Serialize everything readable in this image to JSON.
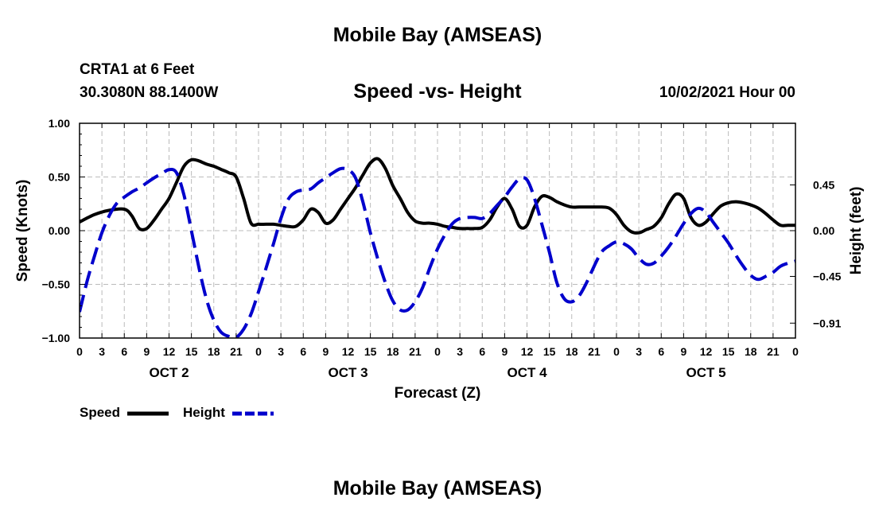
{
  "header": {
    "title": "Mobile Bay (AMSEAS)",
    "footer_title": "Mobile Bay (AMSEAS)",
    "station": "CRTA1 at 6 Feet",
    "coords": "30.3080N  88.1400W",
    "chart_title": "Speed -vs- Height",
    "datetime": "10/02/2021 Hour 00"
  },
  "legend": {
    "speed": "Speed",
    "height": "Height"
  },
  "colors": {
    "speed": "#000000",
    "height": "#0000cc",
    "grid": "#bbbbbb"
  },
  "chart_data": {
    "type": "line",
    "title": "Speed -vs- Height",
    "xlabel": "Forecast (Z)",
    "ylabel_left": "Speed (Knots)",
    "ylabel_right": "Height (feet)",
    "xlim": [
      0,
      96
    ],
    "ylim_left": [
      -1.0,
      1.0
    ],
    "ylim_right": [
      -1.0566,
      1.0566
    ],
    "yticks_left": [
      1.0,
      0.5,
      0.0,
      -0.5,
      -1.0
    ],
    "yticks_left_labels": [
      "1.00",
      "0.50",
      "0.00",
      "−0.50",
      "−1.00"
    ],
    "yticks_right": [
      0.45,
      0.0,
      -0.45,
      -0.91
    ],
    "yticks_right_labels": [
      "0.45",
      "0.00",
      "−0.45",
      "−0.91"
    ],
    "xticks": [
      0,
      3,
      6,
      9,
      12,
      15,
      18,
      21,
      24,
      27,
      30,
      33,
      36,
      39,
      42,
      45,
      48,
      51,
      54,
      57,
      60,
      63,
      66,
      69,
      72,
      75,
      78,
      81,
      84,
      87,
      90,
      93,
      96
    ],
    "xtick_labels": [
      "0",
      "3",
      "6",
      "9",
      "12",
      "15",
      "18",
      "21",
      "0",
      "3",
      "6",
      "9",
      "12",
      "15",
      "18",
      "21",
      "0",
      "3",
      "6",
      "9",
      "12",
      "15",
      "18",
      "21",
      "0",
      "3",
      "6",
      "9",
      "12",
      "15",
      "18",
      "21",
      "0"
    ],
    "day_labels": [
      {
        "x": 12,
        "label": "OCT 2"
      },
      {
        "x": 36,
        "label": "OCT 3"
      },
      {
        "x": 60,
        "label": "OCT 4"
      },
      {
        "x": 84,
        "label": "OCT 5"
      }
    ],
    "grid": true,
    "legend_position": "bottom-left",
    "series": [
      {
        "name": "Speed",
        "axis": "left",
        "style": "solid",
        "x": [
          0,
          2,
          4,
          6,
          7,
          8,
          9,
          10,
          11,
          12,
          13,
          14,
          15,
          16,
          17,
          18,
          19,
          20,
          21,
          22,
          23,
          24,
          25,
          26,
          27,
          28,
          29,
          30,
          31,
          32,
          33,
          34,
          35,
          36,
          37,
          38,
          39,
          40,
          41,
          42,
          43,
          44,
          45,
          46,
          47,
          48,
          49,
          50,
          51,
          52,
          53,
          54,
          55,
          56,
          57,
          58,
          59,
          60,
          61,
          62,
          63,
          64,
          65,
          66,
          67,
          68,
          69,
          70,
          71,
          72,
          73,
          74,
          75,
          76,
          77,
          78,
          79,
          80,
          81,
          82,
          83,
          84,
          85,
          86,
          87,
          88,
          89,
          90,
          91,
          92,
          93,
          94,
          95,
          96
        ],
        "values": [
          0.08,
          0.15,
          0.19,
          0.2,
          0.14,
          0.02,
          0.02,
          0.1,
          0.2,
          0.3,
          0.45,
          0.6,
          0.66,
          0.65,
          0.62,
          0.6,
          0.57,
          0.54,
          0.5,
          0.3,
          0.07,
          0.06,
          0.06,
          0.06,
          0.05,
          0.04,
          0.04,
          0.1,
          0.2,
          0.17,
          0.07,
          0.1,
          0.2,
          0.3,
          0.4,
          0.52,
          0.63,
          0.67,
          0.58,
          0.42,
          0.3,
          0.17,
          0.09,
          0.07,
          0.07,
          0.06,
          0.04,
          0.03,
          0.02,
          0.02,
          0.02,
          0.03,
          0.1,
          0.22,
          0.3,
          0.2,
          0.04,
          0.05,
          0.22,
          0.32,
          0.31,
          0.27,
          0.24,
          0.22,
          0.22,
          0.22,
          0.22,
          0.22,
          0.21,
          0.15,
          0.05,
          -0.01,
          -0.02,
          0.01,
          0.04,
          0.12,
          0.25,
          0.34,
          0.3,
          0.12,
          0.05,
          0.08,
          0.16,
          0.23,
          0.26,
          0.27,
          0.26,
          0.24,
          0.21,
          0.16,
          0.1,
          0.05,
          0.05,
          0.05
        ]
      },
      {
        "name": "Height",
        "axis": "right",
        "style": "dashed",
        "x": [
          0,
          1,
          2,
          3,
          4,
          5,
          6,
          7,
          8,
          9,
          10,
          11,
          12,
          13,
          14,
          15,
          16,
          17,
          18,
          19,
          20,
          21,
          22,
          23,
          24,
          25,
          26,
          27,
          28,
          29,
          30,
          31,
          32,
          33,
          34,
          35,
          36,
          37,
          38,
          39,
          40,
          41,
          42,
          43,
          44,
          45,
          46,
          47,
          48,
          49,
          50,
          51,
          52,
          53,
          54,
          55,
          56,
          57,
          58,
          59,
          60,
          61,
          62,
          63,
          64,
          65,
          66,
          67,
          68,
          69,
          70,
          71,
          72,
          73,
          74,
          75,
          76,
          77,
          78,
          79,
          80,
          81,
          82,
          83,
          84,
          85,
          86,
          87,
          88,
          89,
          90,
          91,
          92,
          93,
          94,
          95,
          96
        ],
        "values": [
          -0.8,
          -0.5,
          -0.25,
          -0.02,
          0.15,
          0.27,
          0.33,
          0.38,
          0.42,
          0.47,
          0.52,
          0.56,
          0.6,
          0.57,
          0.35,
          0.0,
          -0.36,
          -0.67,
          -0.88,
          -1.0,
          -1.04,
          -1.05,
          -0.97,
          -0.82,
          -0.6,
          -0.37,
          -0.13,
          0.12,
          0.31,
          0.38,
          0.4,
          0.41,
          0.47,
          0.52,
          0.57,
          0.61,
          0.6,
          0.52,
          0.28,
          -0.02,
          -0.28,
          -0.51,
          -0.69,
          -0.78,
          -0.78,
          -0.7,
          -0.56,
          -0.36,
          -0.18,
          -0.04,
          0.07,
          0.12,
          0.13,
          0.13,
          0.12,
          0.17,
          0.25,
          0.33,
          0.43,
          0.51,
          0.5,
          0.32,
          0.06,
          -0.21,
          -0.51,
          -0.67,
          -0.7,
          -0.64,
          -0.51,
          -0.35,
          -0.21,
          -0.15,
          -0.11,
          -0.13,
          -0.18,
          -0.27,
          -0.33,
          -0.32,
          -0.25,
          -0.16,
          -0.05,
          0.07,
          0.17,
          0.22,
          0.18,
          0.08,
          -0.02,
          -0.12,
          -0.24,
          -0.35,
          -0.44,
          -0.48,
          -0.45,
          -0.41,
          -0.35,
          -0.32,
          -0.3
        ]
      }
    ]
  }
}
